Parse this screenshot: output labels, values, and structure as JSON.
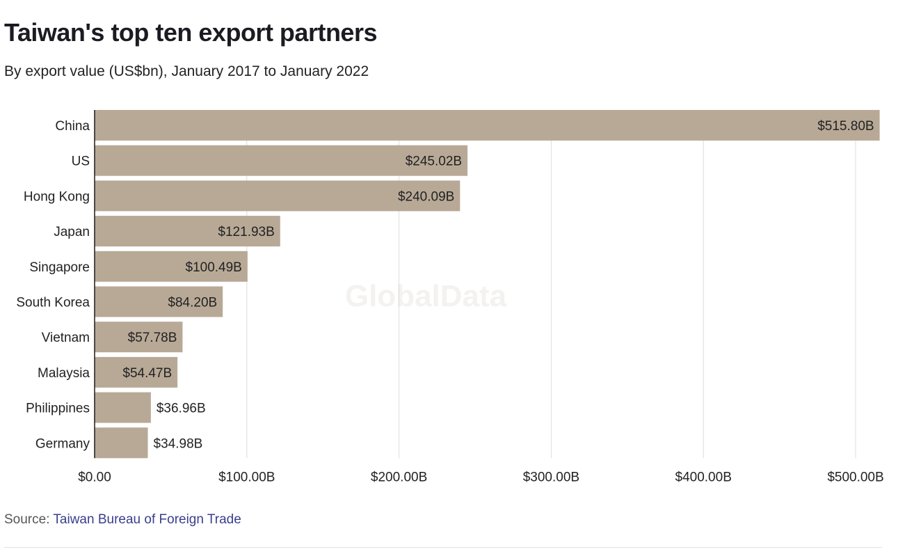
{
  "colors": {
    "bar": "#b8a997",
    "grid": "#dcdcdc",
    "axis": "#1a1a1a",
    "link": "#3a3e8c"
  },
  "watermark": "GlobalData",
  "source": {
    "prefix": "Source: ",
    "link_text": "Taiwan Bureau of Foreign Trade"
  },
  "chart_data": {
    "type": "bar",
    "orientation": "horizontal",
    "title": "Taiwan's top ten export partners",
    "subtitle": "By export value (US$bn), January 2017 to January 2022",
    "categories": [
      "China",
      "US",
      "Hong Kong",
      "Japan",
      "Singapore",
      "South Korea",
      "Vietnam",
      "Malaysia",
      "Philippines",
      "Germany"
    ],
    "values": [
      515.8,
      245.02,
      240.09,
      121.93,
      100.49,
      84.2,
      57.78,
      54.47,
      36.96,
      34.98
    ],
    "value_labels": [
      "$515.80B",
      "$245.02B",
      "$240.09B",
      "$121.93B",
      "$100.49B",
      "$84.20B",
      "$57.78B",
      "$54.47B",
      "$36.96B",
      "$34.98B"
    ],
    "xticks": [
      0,
      100,
      200,
      300,
      400,
      500
    ],
    "xtick_labels": [
      "$0.00",
      "$100.00B",
      "$200.00B",
      "$300.00B",
      "$400.00B",
      "$500.00B"
    ],
    "xlim": [
      0,
      520
    ],
    "grid": true,
    "legend": "none"
  }
}
